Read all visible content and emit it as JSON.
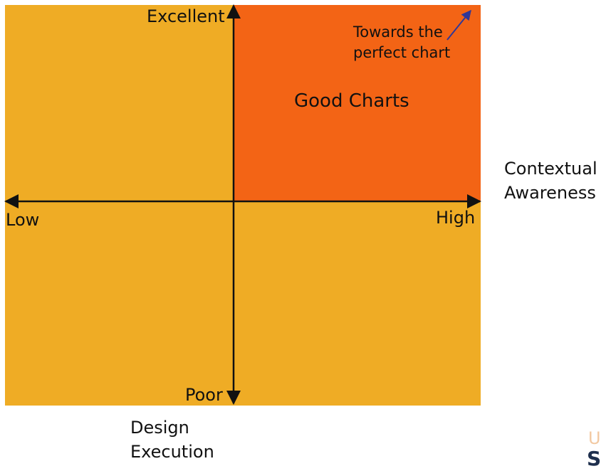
{
  "colors": {
    "quadrant_default": "#efac25",
    "quadrant_highlight": "#f36415",
    "axis": "#111111",
    "arrow": "#2f3799"
  },
  "axes": {
    "y_top": "Excellent",
    "y_bottom": "Poor",
    "x_left": "Low",
    "x_right": "High",
    "x_title": [
      "Contextual",
      "Awareness"
    ],
    "y_title": [
      "Design",
      "Execution"
    ]
  },
  "quadrants": {
    "top_right_label": "Good Charts"
  },
  "annotation": {
    "lines": [
      "Towards the",
      "perfect chart"
    ]
  },
  "logo": {
    "top": "U",
    "bottom": "S"
  }
}
